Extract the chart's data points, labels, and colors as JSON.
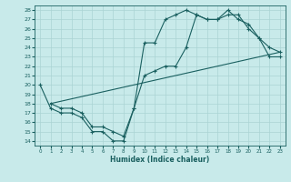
{
  "xlabel": "Humidex (Indice chaleur)",
  "bg_color": "#c8eaea",
  "grid_color": "#aad4d4",
  "line_color": "#1a6060",
  "xlim": [
    -0.5,
    23.5
  ],
  "ylim": [
    13.5,
    28.5
  ],
  "xticks": [
    0,
    1,
    2,
    3,
    4,
    5,
    6,
    7,
    8,
    9,
    10,
    11,
    12,
    13,
    14,
    15,
    16,
    17,
    18,
    19,
    20,
    21,
    22,
    23
  ],
  "yticks": [
    14,
    15,
    16,
    17,
    18,
    19,
    20,
    21,
    22,
    23,
    24,
    25,
    26,
    27,
    28
  ],
  "line1_x": [
    0,
    1,
    2,
    3,
    4,
    5,
    6,
    7,
    8,
    9,
    10,
    11,
    12,
    13,
    14,
    15,
    16,
    17,
    18,
    19,
    20,
    21,
    22,
    23
  ],
  "line1_y": [
    20.0,
    17.5,
    17.0,
    17.0,
    16.5,
    15.0,
    15.0,
    14.0,
    14.0,
    17.5,
    21.0,
    21.5,
    22.0,
    22.0,
    24.0,
    27.5,
    27.0,
    27.0,
    27.5,
    27.5,
    26.0,
    25.0,
    24.0,
    23.5
  ],
  "line2_x": [
    1,
    2,
    3,
    4,
    5,
    6,
    7,
    8,
    9,
    10,
    11,
    12,
    13,
    14,
    15,
    16,
    17,
    18,
    19,
    20,
    21,
    22,
    23
  ],
  "line2_y": [
    18.0,
    17.5,
    17.5,
    17.0,
    15.5,
    15.5,
    15.0,
    14.5,
    17.5,
    24.5,
    24.5,
    27.0,
    27.5,
    28.0,
    27.5,
    27.0,
    27.0,
    28.0,
    27.0,
    26.5,
    25.0,
    23.0,
    23.0
  ],
  "line3_x": [
    1,
    23
  ],
  "line3_y": [
    18.0,
    23.5
  ]
}
